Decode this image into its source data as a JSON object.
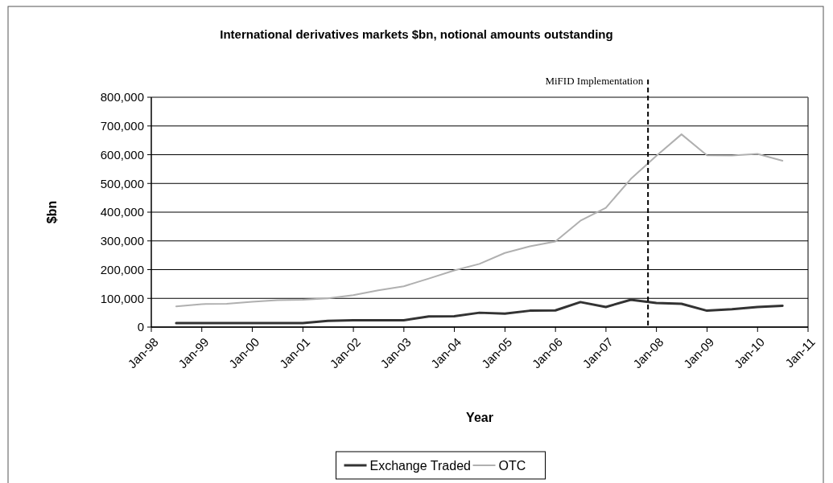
{
  "chart_data": {
    "type": "line",
    "title": "International derivatives markets $bn, notional amounts outstanding",
    "xlabel": "Year",
    "ylabel": "$bn",
    "x": [
      "1998-06-30",
      "1998-12-31",
      "1999-06-30",
      "1999-12-31",
      "2000-06-30",
      "2000-12-31",
      "2001-06-30",
      "2001-12-31",
      "2002-06-30",
      "2002-12-31",
      "2003-06-30",
      "2003-12-31",
      "2004-06-30",
      "2004-12-31",
      "2005-06-30",
      "2005-12-31",
      "2006-06-30",
      "2006-12-31",
      "2007-06-30",
      "2007-12-31",
      "2008-06-30",
      "2008-12-31",
      "2009-06-30",
      "2009-12-31",
      "2010-06-30"
    ],
    "series": [
      {
        "name": "Exchange Traded",
        "color": "#333333",
        "values": [
          14000,
          14000,
          14000,
          14000,
          14000,
          14000,
          22000,
          24000,
          24000,
          24000,
          37000,
          38000,
          50000,
          47000,
          57000,
          58000,
          87000,
          70000,
          95000,
          84000,
          81000,
          57000,
          62000,
          70000,
          74000
        ]
      },
      {
        "name": "OTC",
        "color": "#b0b0b0",
        "values": [
          72000,
          80000,
          81000,
          88000,
          94000,
          95000,
          100000,
          111000,
          128000,
          142000,
          169000,
          197000,
          220000,
          258000,
          281000,
          298000,
          370000,
          415000,
          516000,
          596000,
          671000,
          598000,
          597000,
          603000,
          579000
        ]
      }
    ],
    "xlim": [
      "1998-01-01",
      "2011-01-01"
    ],
    "xticks": [
      {
        "value": "1998-01-01",
        "label": "Jan-98"
      },
      {
        "value": "1999-01-01",
        "label": "Jan-99"
      },
      {
        "value": "2000-01-01",
        "label": "Jan-00"
      },
      {
        "value": "2001-01-01",
        "label": "Jan-01"
      },
      {
        "value": "2002-01-01",
        "label": "Jan-02"
      },
      {
        "value": "2003-01-01",
        "label": "Jan-03"
      },
      {
        "value": "2004-01-01",
        "label": "Jan-04"
      },
      {
        "value": "2005-01-01",
        "label": "Jan-05"
      },
      {
        "value": "2006-01-01",
        "label": "Jan-06"
      },
      {
        "value": "2007-01-01",
        "label": "Jan-07"
      },
      {
        "value": "2008-01-01",
        "label": "Jan-08"
      },
      {
        "value": "2009-01-01",
        "label": "Jan-09"
      },
      {
        "value": "2010-01-01",
        "label": "Jan-10"
      },
      {
        "value": "2011-01-01",
        "label": "Jan-11"
      }
    ],
    "ylim": [
      0,
      800000
    ],
    "yticks": [
      {
        "value": 0,
        "label": "0"
      },
      {
        "value": 100000,
        "label": "100,000"
      },
      {
        "value": 200000,
        "label": "200,000"
      },
      {
        "value": 300000,
        "label": "300,000"
      },
      {
        "value": 400000,
        "label": "400,000"
      },
      {
        "value": 500000,
        "label": "500,000"
      },
      {
        "value": 600000,
        "label": "600,000"
      },
      {
        "value": 700000,
        "label": "700,000"
      },
      {
        "value": 800000,
        "label": "800,000"
      }
    ],
    "ref_lines": [
      {
        "axis": "x",
        "value": "2007-11-01",
        "label": "MiFID Implementation",
        "color": "#000000",
        "line_style": "dashed"
      }
    ],
    "grid": "y",
    "legend": "bottom",
    "marker": "none",
    "line_style": "solid"
  }
}
